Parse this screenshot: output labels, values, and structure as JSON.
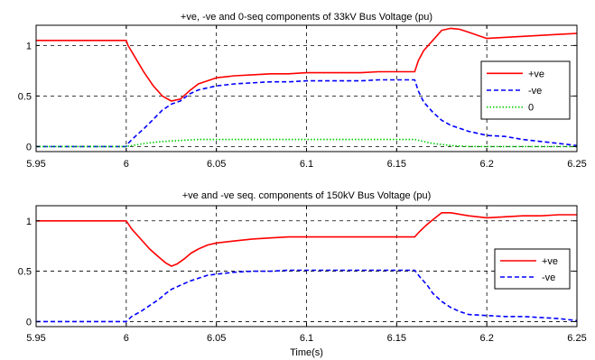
{
  "figure": {
    "xlabel": "Time(s)"
  },
  "chart_data": [
    {
      "type": "line",
      "title": "+ve, -ve and 0-seq components of 33kV Bus Voltage (pu)",
      "xlabel": "",
      "ylabel": "",
      "xlim": [
        5.95,
        6.25
      ],
      "ylim": [
        -0.05,
        1.2
      ],
      "xticks": [
        5.95,
        6.0,
        6.05,
        6.1,
        6.15,
        6.2,
        6.25
      ],
      "xtick_labels": [
        "5.95",
        "6",
        "6.05",
        "6.1",
        "6.15",
        "6.2",
        "6.25"
      ],
      "yticks": [
        0,
        0.5,
        1
      ],
      "ytick_labels": [
        "0",
        "0.5",
        "1"
      ],
      "grid": true,
      "legend": "right",
      "series": [
        {
          "name": "+ve",
          "color": "#ff0000",
          "dash": "solid",
          "x": [
            5.95,
            6.0,
            6.001,
            6.005,
            6.01,
            6.015,
            6.02,
            6.025,
            6.03,
            6.035,
            6.04,
            6.045,
            6.05,
            6.06,
            6.07,
            6.08,
            6.09,
            6.1,
            6.11,
            6.12,
            6.13,
            6.14,
            6.15,
            6.16,
            6.162,
            6.165,
            6.17,
            6.175,
            6.18,
            6.185,
            6.19,
            6.195,
            6.2,
            6.21,
            6.22,
            6.23,
            6.24,
            6.25
          ],
          "y": [
            1.05,
            1.05,
            1.0,
            0.88,
            0.73,
            0.6,
            0.5,
            0.45,
            0.47,
            0.55,
            0.62,
            0.65,
            0.68,
            0.7,
            0.71,
            0.72,
            0.72,
            0.73,
            0.73,
            0.73,
            0.73,
            0.74,
            0.74,
            0.74,
            0.85,
            0.95,
            1.05,
            1.15,
            1.17,
            1.16,
            1.13,
            1.1,
            1.07,
            1.08,
            1.09,
            1.1,
            1.11,
            1.12
          ]
        },
        {
          "name": "-ve",
          "color": "#0000ff",
          "dash": "dashed",
          "x": [
            5.95,
            6.0,
            6.001,
            6.005,
            6.01,
            6.015,
            6.02,
            6.025,
            6.03,
            6.035,
            6.04,
            6.045,
            6.05,
            6.06,
            6.07,
            6.08,
            6.09,
            6.1,
            6.11,
            6.12,
            6.13,
            6.14,
            6.15,
            6.16,
            6.162,
            6.165,
            6.17,
            6.175,
            6.18,
            6.185,
            6.19,
            6.195,
            6.2,
            6.21,
            6.22,
            6.23,
            6.24,
            6.25
          ],
          "y": [
            0.0,
            0.0,
            0.03,
            0.1,
            0.18,
            0.27,
            0.36,
            0.42,
            0.45,
            0.52,
            0.56,
            0.58,
            0.6,
            0.62,
            0.63,
            0.64,
            0.64,
            0.65,
            0.65,
            0.65,
            0.65,
            0.66,
            0.66,
            0.66,
            0.55,
            0.44,
            0.34,
            0.26,
            0.21,
            0.18,
            0.15,
            0.13,
            0.11,
            0.1,
            0.07,
            0.05,
            0.03,
            0.01
          ]
        },
        {
          "name": "0",
          "color": "#00cc00",
          "dash": "dotted",
          "x": [
            5.95,
            6.0,
            6.01,
            6.02,
            6.03,
            6.04,
            6.05,
            6.1,
            6.16,
            6.165,
            6.17,
            6.18,
            6.19,
            6.2,
            6.25
          ],
          "y": [
            0.0,
            0.0,
            0.03,
            0.05,
            0.06,
            0.07,
            0.07,
            0.07,
            0.07,
            0.05,
            0.03,
            0.01,
            0.0,
            0.0,
            0.0
          ]
        }
      ]
    },
    {
      "type": "line",
      "title": "+ve and -ve seq. components of 150kV Bus Voltage (pu)",
      "xlabel": "Time(s)",
      "ylabel": "",
      "xlim": [
        5.95,
        6.25
      ],
      "ylim": [
        -0.05,
        1.15
      ],
      "xticks": [
        5.95,
        6.0,
        6.05,
        6.1,
        6.15,
        6.2,
        6.25
      ],
      "xtick_labels": [
        "5.95",
        "6",
        "6.05",
        "6.1",
        "6.15",
        "6.2",
        "6.25"
      ],
      "yticks": [
        0,
        0.5,
        1
      ],
      "ytick_labels": [
        "0",
        "0.5",
        "1"
      ],
      "grid": true,
      "legend": "right",
      "series": [
        {
          "name": "+ve",
          "color": "#ff0000",
          "dash": "solid",
          "x": [
            5.95,
            6.0,
            6.003,
            6.008,
            6.013,
            6.018,
            6.022,
            6.025,
            6.028,
            6.032,
            6.036,
            6.04,
            6.045,
            6.05,
            6.06,
            6.07,
            6.08,
            6.09,
            6.1,
            6.12,
            6.14,
            6.16,
            6.162,
            6.166,
            6.17,
            6.175,
            6.18,
            6.19,
            6.2,
            6.21,
            6.22,
            6.23,
            6.24,
            6.25
          ],
          "y": [
            1.0,
            1.0,
            0.92,
            0.82,
            0.72,
            0.64,
            0.58,
            0.55,
            0.57,
            0.62,
            0.68,
            0.72,
            0.76,
            0.78,
            0.8,
            0.82,
            0.83,
            0.84,
            0.84,
            0.84,
            0.84,
            0.84,
            0.88,
            0.95,
            1.01,
            1.08,
            1.08,
            1.05,
            1.03,
            1.04,
            1.05,
            1.05,
            1.06,
            1.06
          ]
        },
        {
          "name": "-ve",
          "color": "#0000ff",
          "dash": "dashed",
          "x": [
            5.95,
            6.0,
            6.003,
            6.008,
            6.013,
            6.018,
            6.022,
            6.025,
            6.03,
            6.035,
            6.04,
            6.045,
            6.05,
            6.06,
            6.07,
            6.08,
            6.09,
            6.1,
            6.12,
            6.14,
            6.16,
            6.163,
            6.167,
            6.17,
            6.175,
            6.18,
            6.185,
            6.19,
            6.2,
            6.21,
            6.22,
            6.23,
            6.24,
            6.25
          ],
          "y": [
            0.0,
            0.0,
            0.05,
            0.1,
            0.16,
            0.22,
            0.28,
            0.32,
            0.36,
            0.4,
            0.43,
            0.46,
            0.47,
            0.49,
            0.5,
            0.5,
            0.51,
            0.51,
            0.51,
            0.51,
            0.51,
            0.44,
            0.36,
            0.28,
            0.2,
            0.14,
            0.1,
            0.07,
            0.06,
            0.05,
            0.05,
            0.04,
            0.03,
            0.01
          ]
        }
      ]
    }
  ]
}
